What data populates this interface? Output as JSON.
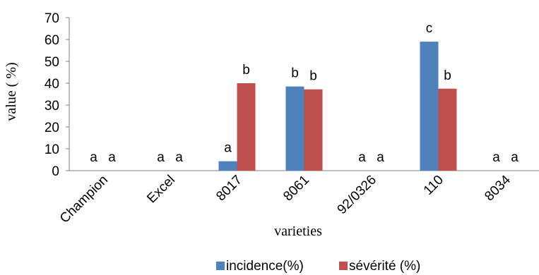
{
  "chart_data": {
    "type": "bar",
    "title": "",
    "xlabel": "varieties",
    "ylabel": "value ( %)",
    "ylim": [
      0,
      70
    ],
    "yticks": [
      0,
      10,
      20,
      30,
      40,
      50,
      60,
      70
    ],
    "grid": false,
    "legend_position": "bottom",
    "categories": [
      "Champion",
      "Excel",
      "8017",
      "8061",
      "92/0326",
      "110",
      "8034"
    ],
    "series": [
      {
        "name": "incidence(%)",
        "color": "#4f81bd",
        "values": [
          0,
          0,
          4.3,
          38.5,
          0,
          59,
          0
        ],
        "labels": [
          "a",
          "a",
          "a",
          "b",
          "a",
          "c",
          "a"
        ]
      },
      {
        "name": "sévérité (%)",
        "color": "#c0504d",
        "values": [
          0,
          0,
          40,
          37.2,
          0,
          37.5,
          0
        ],
        "labels": [
          "a",
          "a",
          "b",
          "b",
          "a",
          "b",
          "a"
        ]
      }
    ]
  }
}
